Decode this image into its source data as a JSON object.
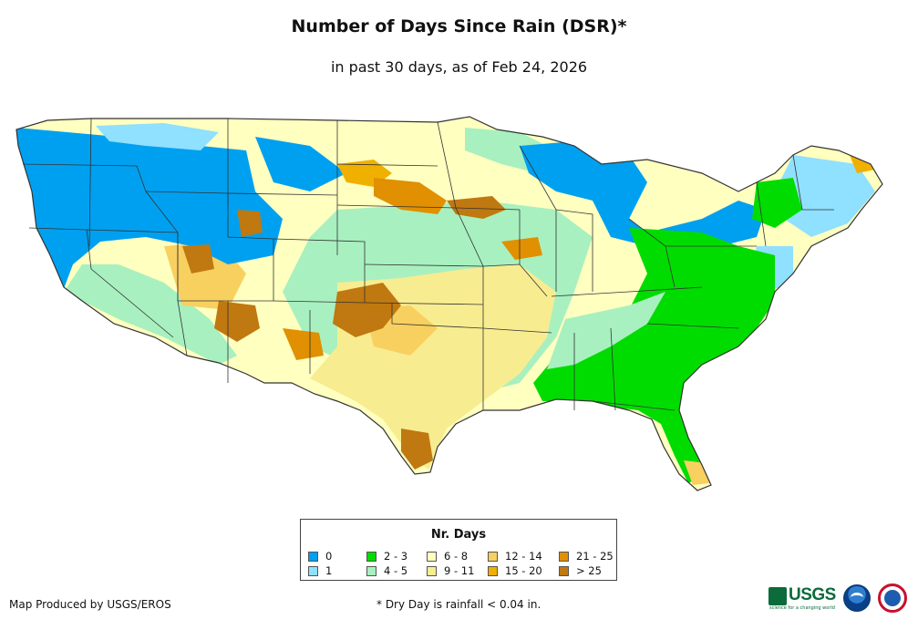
{
  "header": {
    "title": "Number of Days Since Rain (DSR)*",
    "subtitle": "in past 30 days, as of Feb 24, 2026"
  },
  "map": {
    "region": "Contiguous United States",
    "colors": {
      "c0": "#00a0f0",
      "c1": "#90e0ff",
      "c2_3": "#00dc00",
      "c4_5": "#a8f0c0",
      "c6_8": "#ffffc0",
      "c9_11": "#f8ec90",
      "c12_14": "#f8d060",
      "c15_20": "#f0b000",
      "c21_25": "#e09000",
      "c26": "#c07810"
    },
    "outline_color": "#333333"
  },
  "legend": {
    "title": "Nr. Days",
    "items": [
      {
        "label": "0",
        "color": "#00a0f0"
      },
      {
        "label": "1",
        "color": "#90e0ff"
      },
      {
        "label": "2 - 3",
        "color": "#00dc00"
      },
      {
        "label": "4 - 5",
        "color": "#a8f0c0"
      },
      {
        "label": "6 - 8",
        "color": "#ffffc0"
      },
      {
        "label": "9 - 11",
        "color": "#f8ec90"
      },
      {
        "label": "12 - 14",
        "color": "#f8d060"
      },
      {
        "label": "15 - 20",
        "color": "#f0b000"
      },
      {
        "label": "21 - 25",
        "color": "#e09000"
      },
      {
        "label": "> 25",
        "color": "#c07810"
      }
    ]
  },
  "footer": {
    "credit": "Map Produced by USGS/EROS",
    "footnote": "* Dry Day is rainfall < 0.04 in.",
    "logos": {
      "usgs_word": "USGS",
      "usgs_tagline": "science for a changing world",
      "noaa": "noaa-logo",
      "nws": "nws-logo"
    }
  }
}
